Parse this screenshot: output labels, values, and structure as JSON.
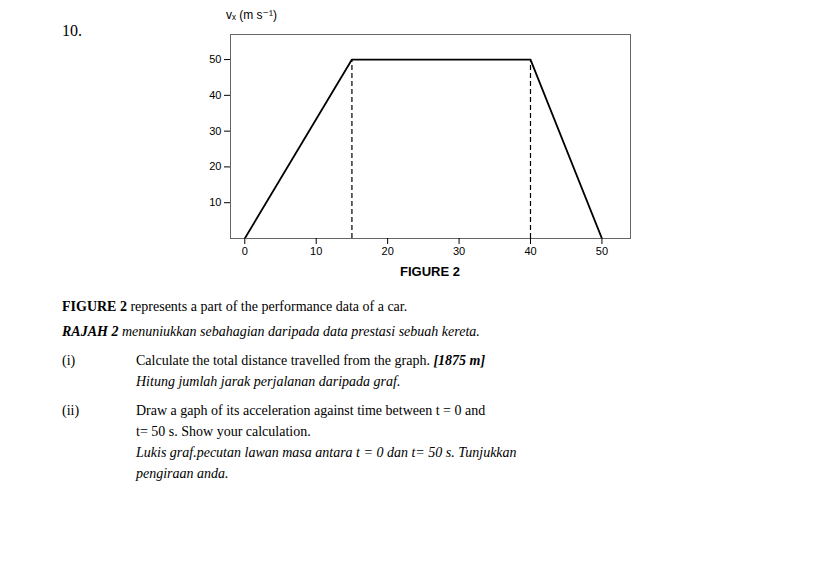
{
  "chart_data": {
    "type": "line",
    "xlabel": "FIGURE 2",
    "ylabel": "vₓ (m s⁻¹)",
    "x": [
      0,
      15,
      40,
      50
    ],
    "values": [
      0,
      50,
      50,
      0
    ],
    "color": "#000000",
    "xlim": [
      -2,
      54
    ],
    "ylim": [
      0,
      57
    ],
    "xticks": [
      0,
      10,
      20,
      30,
      40,
      50
    ],
    "yticks": [
      10,
      20,
      30,
      40,
      50
    ],
    "grid": false,
    "reference_lines": {
      "x": [
        15,
        40
      ],
      "y": [
        50,
        50
      ],
      "color": "#000000",
      "line_style": "dashed"
    }
  },
  "question_number": "10.",
  "intro": [
    {
      "lead": "FIGURE 2",
      "text": " represents a part of the performance data of a car."
    },
    {
      "lead": "RAJAH 2",
      "text": " menuniukkan sebahagian daripada data prestasi sebuah kereta."
    }
  ],
  "parts": [
    {
      "label": "(i)",
      "lines": [
        "Calculate the total distance travelled from the graph. "
      ],
      "answer": "[1875 m]",
      "sub": [
        "Hitung jumlah jarak perjalanan daripada graf."
      ]
    },
    {
      "label": "(ii)",
      "lines": [
        "Draw a gaph of its acceleration against time between t = 0 and",
        "t= 50 s. Show your calculation."
      ],
      "sub": [
        "Lukis graf.pecutan lawan masa antara t = 0 dan t= 50 s. Tunjukkan",
        "pengiraan anda."
      ]
    }
  ]
}
